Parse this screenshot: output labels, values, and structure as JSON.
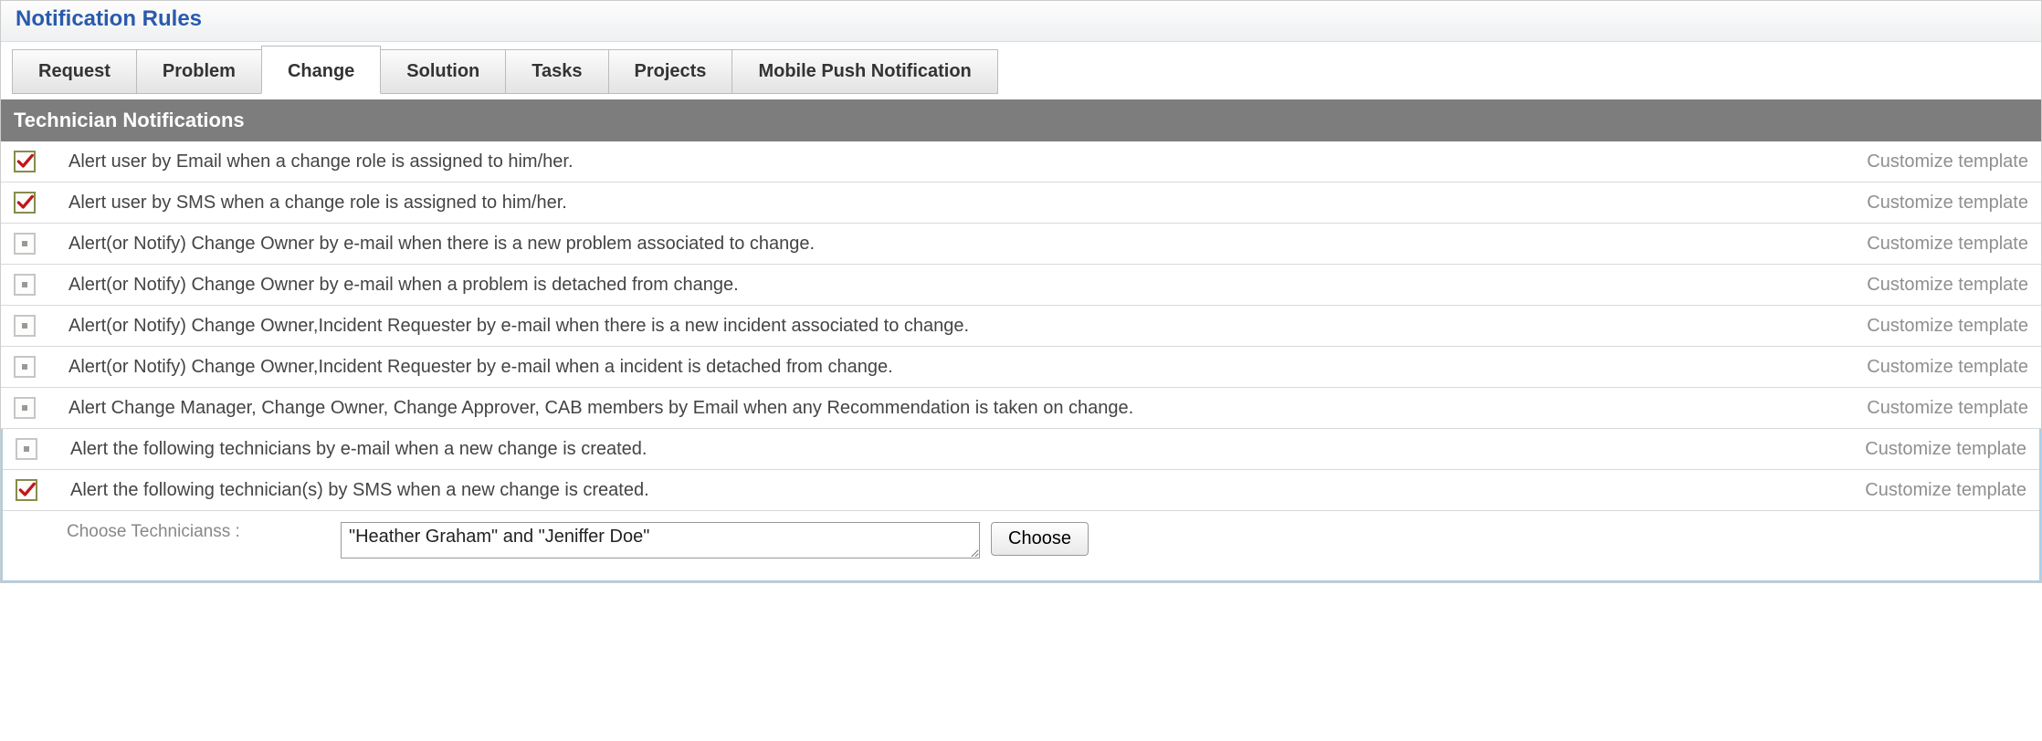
{
  "title": "Notification Rules",
  "tabs": [
    {
      "label": "Request",
      "active": false
    },
    {
      "label": "Problem",
      "active": false
    },
    {
      "label": "Change",
      "active": true
    },
    {
      "label": "Solution",
      "active": false
    },
    {
      "label": "Tasks",
      "active": false
    },
    {
      "label": "Projects",
      "active": false
    },
    {
      "label": "Mobile Push Notification",
      "active": false
    }
  ],
  "section_header": "Technician Notifications",
  "customize_label": "Customize template",
  "rules": [
    {
      "checked": true,
      "text": "Alert user by Email when a change role is assigned to him/her."
    },
    {
      "checked": true,
      "text": "Alert user by SMS when a change role is assigned to him/her."
    },
    {
      "checked": false,
      "text": "Alert(or Notify) Change Owner by e-mail when there is a new problem associated to change."
    },
    {
      "checked": false,
      "text": "Alert(or Notify) Change Owner by e-mail when a problem is detached from change."
    },
    {
      "checked": false,
      "text": "Alert(or Notify) Change Owner,Incident Requester by e-mail when there is a new incident associated to change."
    },
    {
      "checked": false,
      "text": "Alert(or Notify) Change Owner,Incident Requester by e-mail when a incident is detached from change."
    },
    {
      "checked": false,
      "text": "Alert Change Manager, Change Owner, Change Approver, CAB members by Email when any Recommendation is taken on change."
    }
  ],
  "highlight_rules": [
    {
      "checked": false,
      "text": "Alert the following technicians by e-mail when a new change is created."
    },
    {
      "checked": true,
      "text": "Alert the following technician(s) by SMS when a new change is created."
    }
  ],
  "chooser": {
    "label": "Choose Technicianss :",
    "value": "\"Heather Graham\" and \"Jeniffer Doe\"",
    "button": "Choose"
  },
  "colors": {
    "title": "#2a5aad",
    "section_bg": "#7d7d7d",
    "highlight_border": "#a9cfe7",
    "check_border_checked": "#868c4c",
    "check_mark": "#c01818"
  }
}
